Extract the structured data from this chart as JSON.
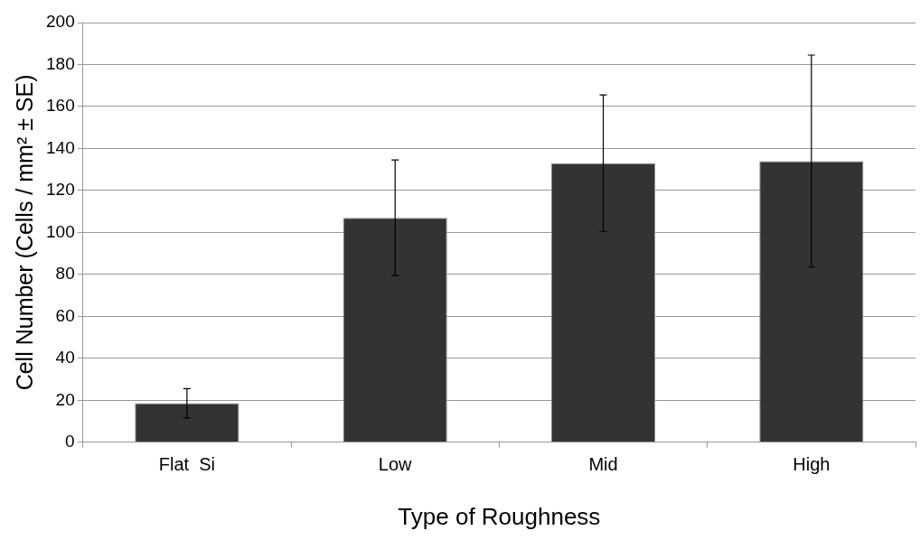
{
  "chart_data": {
    "type": "bar",
    "xlabel": "Type of Roughness",
    "ylabel": "Cell Number (Cells / mm² ± SE)",
    "categories": [
      "Flat  Si",
      "Low",
      "Mid",
      "High"
    ],
    "values": [
      18.6,
      107,
      133,
      134
    ],
    "errors": [
      7,
      27.5,
      32.5,
      50.5
    ],
    "color": "#333333",
    "ylim": [
      0,
      200
    ],
    "yticks": [
      0,
      20,
      40,
      60,
      80,
      100,
      120,
      140,
      160,
      180,
      200
    ],
    "grid": "y",
    "legend": false
  }
}
